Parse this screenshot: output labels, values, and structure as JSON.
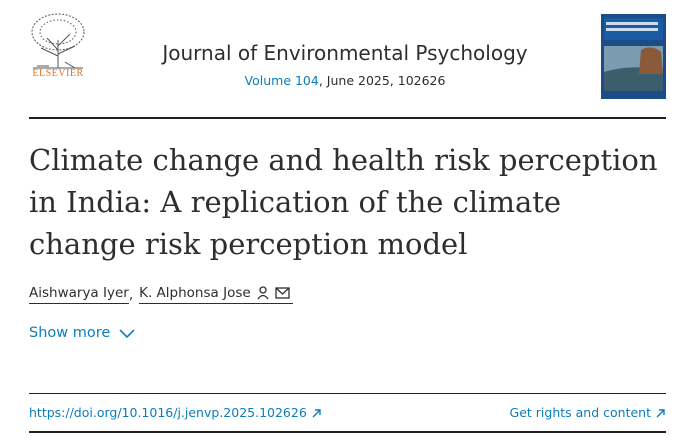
{
  "header": {
    "publisher": "ELSEVIER",
    "journal": "Journal of Environmental Psychology",
    "volume": "Volume 104",
    "issue_info": ", June 2025, 102626"
  },
  "article": {
    "title": "Climate change and health risk perception in India: A replication of the climate change risk perception model",
    "authors": [
      "Aishwarya Iyer",
      "K. Alphonsa Jose"
    ],
    "author_separator": ",",
    "show_more": "Show more"
  },
  "links": {
    "doi": "https://doi.org/10.1016/j.jenvp.2025.102626",
    "rights": "Get rights and content"
  }
}
